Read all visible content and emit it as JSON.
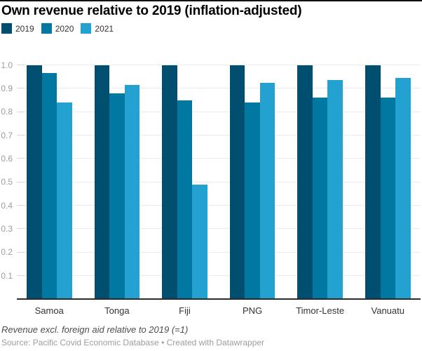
{
  "chart_data": {
    "type": "bar",
    "title": "Own revenue relative to 2019 (inflation-adjusted)",
    "categories": [
      "Samoa",
      "Tonga",
      "Fiji",
      "PNG",
      "Timor-Leste",
      "Vanuatu"
    ],
    "series": [
      {
        "name": "2019",
        "color": "#004e70",
        "values": [
          1.0,
          1.0,
          1.0,
          1.0,
          1.0,
          1.0
        ]
      },
      {
        "name": "2020",
        "color": "#0078a1",
        "values": [
          0.965,
          0.88,
          0.85,
          0.84,
          0.86,
          0.86
        ]
      },
      {
        "name": "2021",
        "color": "#23a2d2",
        "values": [
          0.84,
          0.915,
          0.49,
          0.925,
          0.935,
          0.945
        ]
      }
    ],
    "xlabel": "",
    "ylabel": "",
    "ylim": [
      0,
      1.0
    ],
    "y_ticks": [
      "1.0",
      "0.9",
      "0.8",
      "0.7",
      "0.6",
      "0.5",
      "0.4",
      "0.3",
      "0.2",
      "0.1"
    ],
    "grid": "horizontal",
    "legend_position": "top-left"
  },
  "footer": {
    "note": "Revenue excl. foreign aid relative to 2019 (=1)",
    "source": "Source: Pacific Covid Economic Database • Created with Datawrapper"
  }
}
